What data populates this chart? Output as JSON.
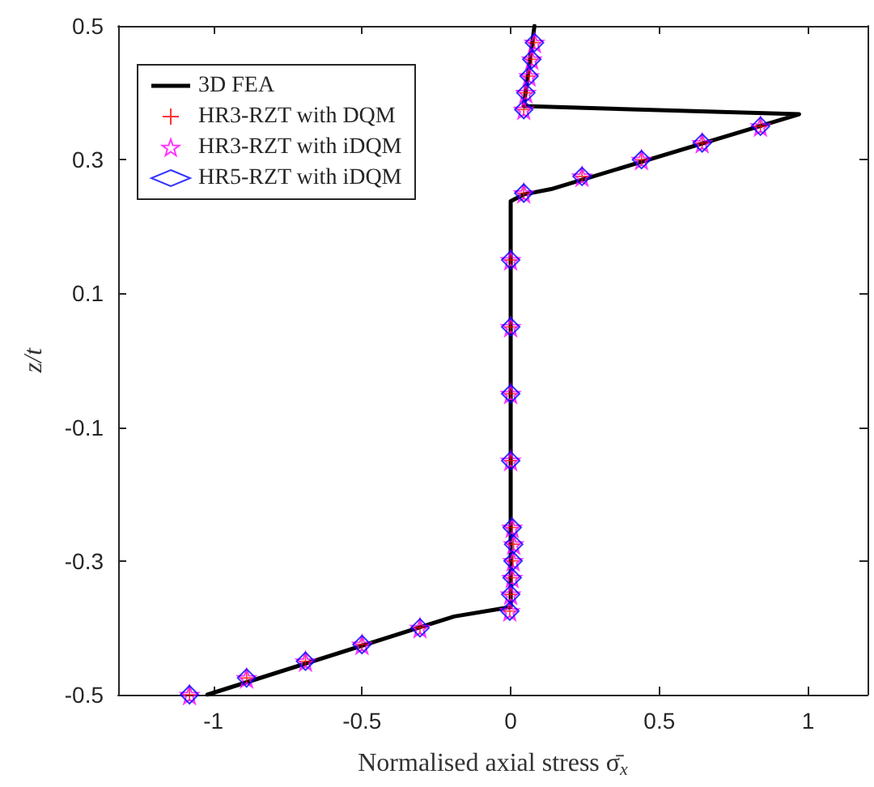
{
  "chart_data": {
    "type": "line",
    "xlabel": "Normalised axial stress σ̄$_{x}$",
    "ylabel": "z/t",
    "xlim": [
      -1.32,
      1.2
    ],
    "xticks": [
      -1,
      -0.5,
      0,
      0.5,
      1
    ],
    "ylim": [
      -0.5,
      0.5
    ],
    "yticks": [
      -0.5,
      -0.3,
      -0.1,
      0.1,
      0.3,
      0.5
    ],
    "grid": false,
    "legend": "top left",
    "series": [
      {
        "name": "3D FEA",
        "color": "#000000",
        "marker": "none",
        "line_style": "solid",
        "x": [
          0.08,
          0.044,
          0.97,
          0.136,
          0.044,
          0,
          0,
          -0.19,
          -1.02
        ],
        "values": [
          0.5,
          0.38,
          0.368,
          0.256,
          0.248,
          0.238,
          -0.369,
          -0.383,
          -0.5
        ]
      },
      {
        "name": "HR3-RZT with DQM",
        "type": "scatter",
        "color": "#ff0000",
        "marker": "cross",
        "x": [
          0.08,
          0.071,
          0.062,
          0.051,
          0.044,
          0.84,
          0.644,
          0.44,
          0.24,
          0.044,
          0,
          0,
          0,
          0,
          0.005,
          0.01,
          0.008,
          0.005,
          0,
          -0.003,
          -0.305,
          -0.5,
          -0.69,
          -0.888,
          -1.08
        ],
        "values": [
          0.475,
          0.45,
          0.425,
          0.4,
          0.375,
          0.35,
          0.325,
          0.3,
          0.275,
          0.25,
          0.15,
          0.05,
          -0.05,
          -0.15,
          -0.25,
          -0.275,
          -0.3,
          -0.325,
          -0.35,
          -0.375,
          -0.4,
          -0.425,
          -0.45,
          -0.475,
          -0.5
        ]
      },
      {
        "name": "HR3-RZT with iDQM",
        "type": "scatter",
        "color": "#ff00ff",
        "marker": "star",
        "x": [
          0.08,
          0.071,
          0.062,
          0.051,
          0.044,
          0.84,
          0.644,
          0.44,
          0.24,
          0.044,
          0,
          0,
          0,
          0,
          0.005,
          0.01,
          0.008,
          0.005,
          0,
          -0.003,
          -0.305,
          -0.5,
          -0.69,
          -0.888,
          -1.08
        ],
        "values": [
          0.475,
          0.45,
          0.425,
          0.4,
          0.375,
          0.35,
          0.325,
          0.3,
          0.275,
          0.25,
          0.15,
          0.05,
          -0.05,
          -0.15,
          -0.25,
          -0.275,
          -0.3,
          -0.325,
          -0.35,
          -0.375,
          -0.4,
          -0.425,
          -0.45,
          -0.475,
          -0.5
        ]
      },
      {
        "name": "HR5-RZT with iDQM",
        "type": "scatter",
        "color": "#0000ff",
        "marker": "diamond",
        "x": [
          0.08,
          0.071,
          0.062,
          0.051,
          0.044,
          0.84,
          0.644,
          0.44,
          0.24,
          0.044,
          0,
          0,
          0,
          0,
          0.005,
          0.01,
          0.008,
          0.005,
          0,
          -0.003,
          -0.305,
          -0.5,
          -0.69,
          -0.888,
          -1.08
        ],
        "values": [
          0.475,
          0.45,
          0.425,
          0.4,
          0.375,
          0.35,
          0.325,
          0.3,
          0.275,
          0.25,
          0.15,
          0.05,
          -0.05,
          -0.15,
          -0.25,
          -0.275,
          -0.3,
          -0.325,
          -0.35,
          -0.375,
          -0.4,
          -0.425,
          -0.45,
          -0.475,
          -0.5
        ]
      }
    ]
  }
}
